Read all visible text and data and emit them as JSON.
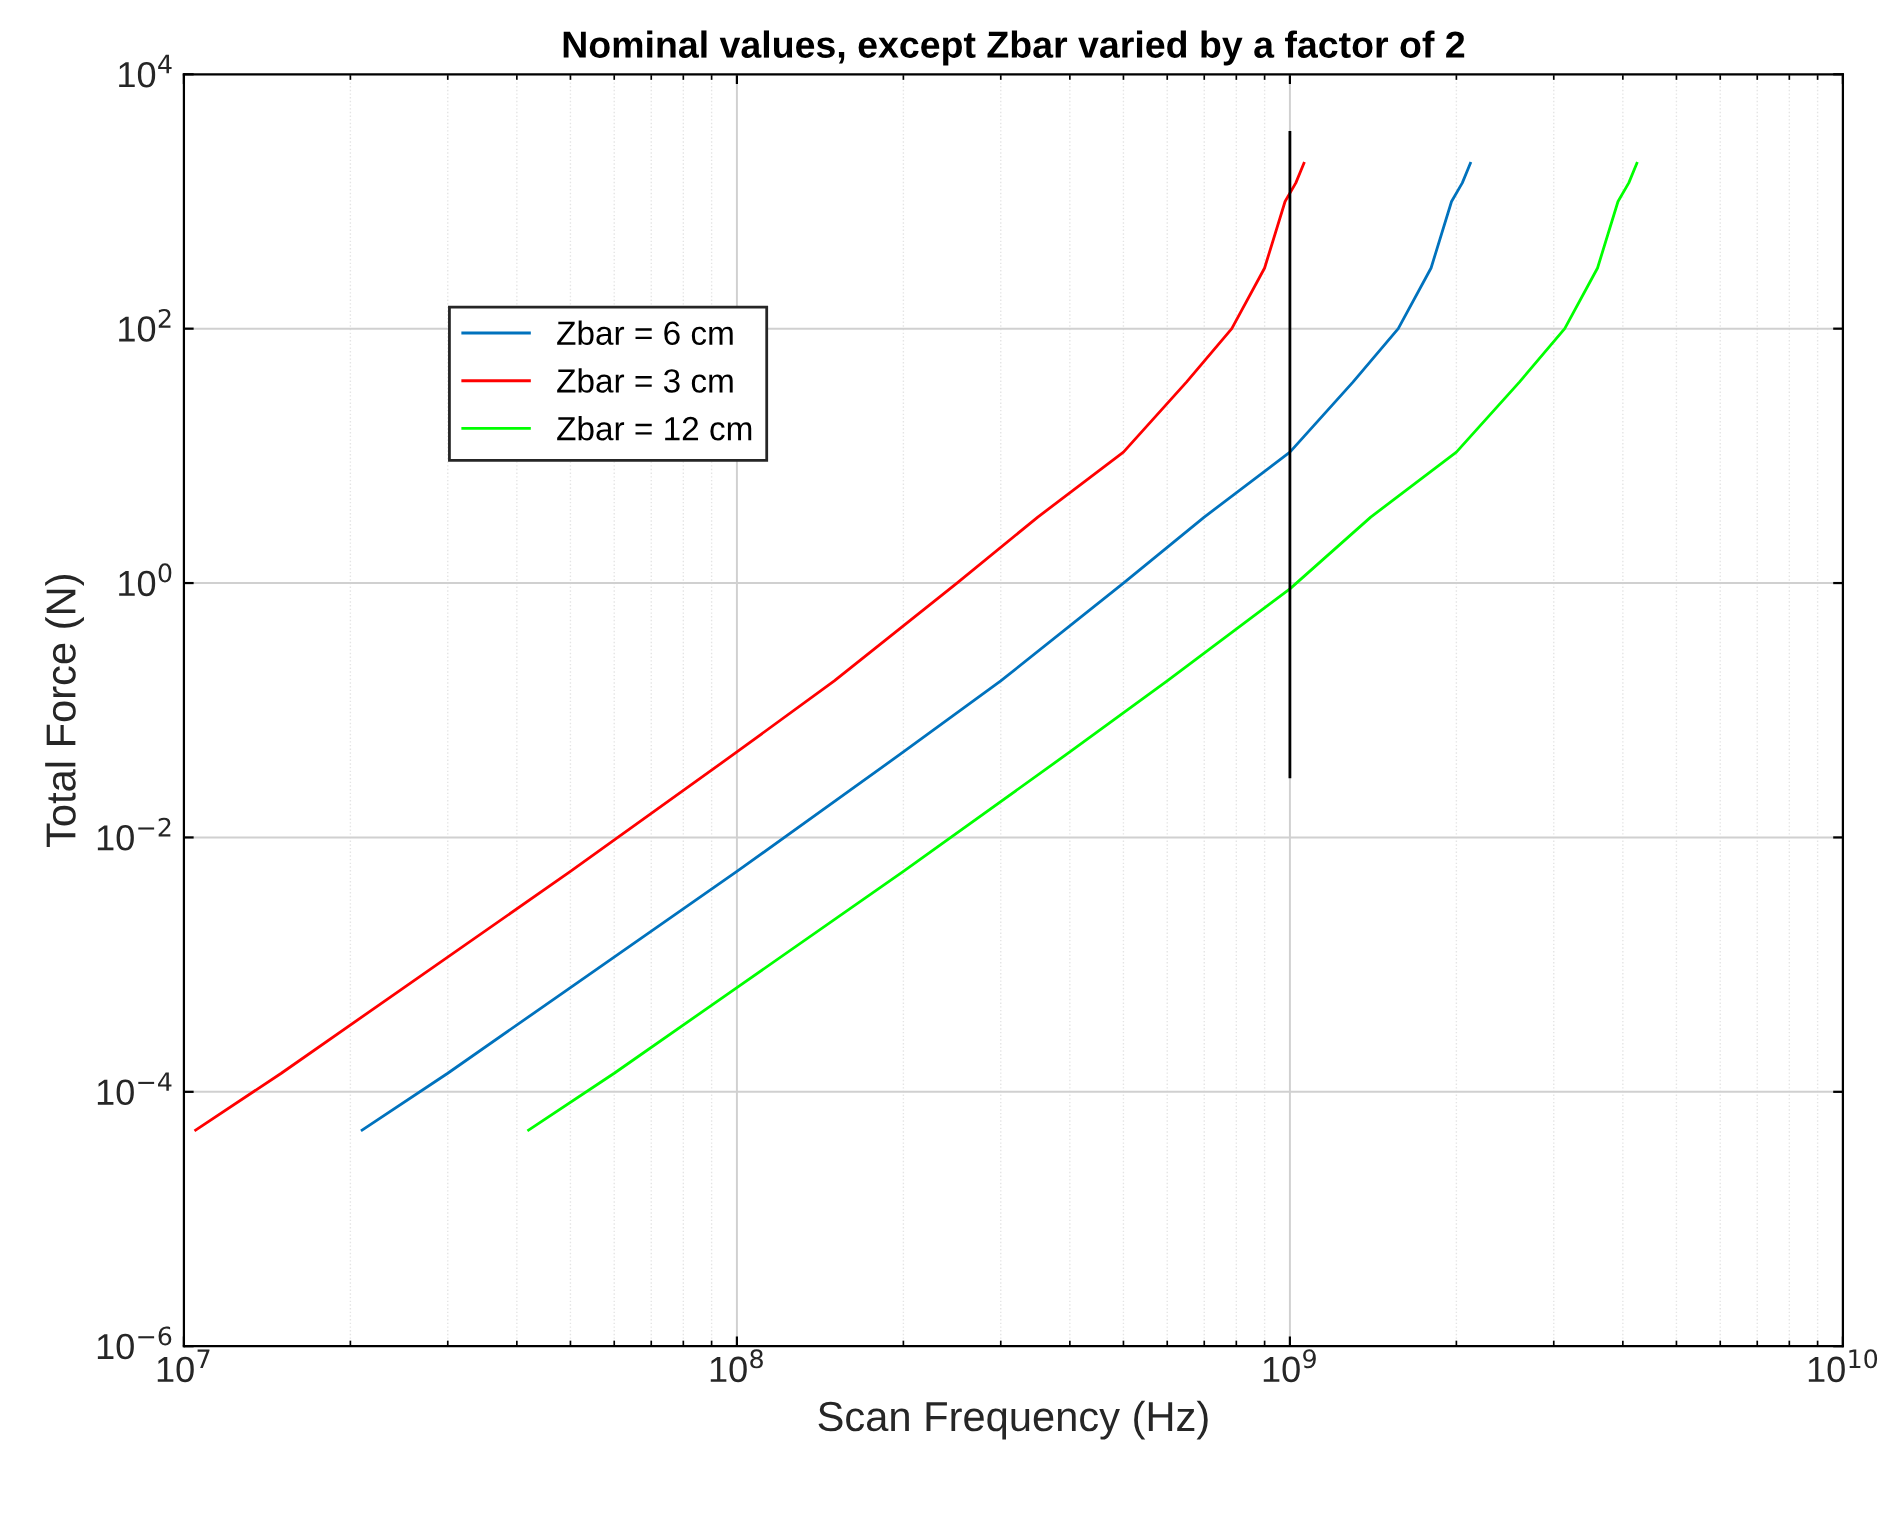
{
  "chart_data": {
    "type": "line",
    "title": "Nominal values, except Zbar varied by a factor of 2",
    "xlabel": "Scan Frequency (Hz)",
    "ylabel": "Total Force (N)",
    "log": "xy",
    "grid": true,
    "legend": "top left",
    "xlim": [
      10000000.0,
      10000000000.0
    ],
    "ylim": [
      1e-06,
      10000.0
    ],
    "xticks": [
      {
        "value": 10000000.0,
        "label": "10$^{7}$"
      },
      {
        "value": 100000000.0,
        "label": "10$^{8}$"
      },
      {
        "value": 1000000000.0,
        "label": "10$^{9}$"
      },
      {
        "value": 10000000000.0,
        "label": "10$^{10}$"
      }
    ],
    "yticks": [
      {
        "value": 1e-06,
        "label": "10$^{−6}$"
      },
      {
        "value": 0.0001,
        "label": "10$^{−4}$"
      },
      {
        "value": 0.01,
        "label": "10$^{−2}$"
      },
      {
        "value": 1,
        "label": "10$^{0}$"
      },
      {
        "value": 100,
        "label": "10$^{2}$"
      },
      {
        "value": 10000,
        "label": "10$^{4}$"
      }
    ],
    "series": [
      {
        "name": "Zbar = 6 cm",
        "color": "#0072bd",
        "x": [
          21000000.0,
          30000000.0,
          50000000.0,
          100000000.0,
          200000000.0,
          300000000.0,
          500000000.0,
          700000000.0,
          1000000000.0,
          1300000000.0,
          1570000000.0,
          1800000000.0,
          1960000000.0,
          2050000000.0,
          2120000000.0
        ],
        "values": [
          5e-05,
          0.00014,
          0.00066,
          0.0054,
          0.047,
          0.17,
          1.0,
          3.3,
          10.7,
          38,
          100,
          300,
          1000,
          1400,
          2000
        ]
      },
      {
        "name": "Zbar = 3 cm",
        "color": "#ff0000",
        "x": [
          10500000.0,
          15000000.0,
          25000000.0,
          50000000.0,
          100000000.0,
          150000000.0,
          250000000.0,
          350000000.0,
          500000000.0,
          650000000.0,
          785000000.0,
          900000000.0,
          980000000.0,
          1025000000.0,
          1060000000.0
        ],
        "values": [
          5e-05,
          0.00014,
          0.00066,
          0.0054,
          0.047,
          0.17,
          1.0,
          3.3,
          10.7,
          38,
          100,
          300,
          1000,
          1400,
          2000
        ]
      },
      {
        "name": "Zbar = 12 cm",
        "color": "#00ff00",
        "x": [
          42000000.0,
          60000000.0,
          100000000.0,
          200000000.0,
          400000000.0,
          600000000.0,
          1000000000.0,
          1400000000.0,
          2000000000.0,
          2600000000.0,
          3140000000.0,
          3600000000.0,
          3920000000.0,
          4100000000.0,
          4240000000.0
        ],
        "values": [
          5e-05,
          0.00014,
          0.00066,
          0.0054,
          0.047,
          0.17,
          0.9,
          3.3,
          10.7,
          38,
          100,
          300,
          1000,
          1400,
          2000
        ]
      },
      {
        "color": "#000000",
        "x": [
          1000000000.0,
          1000000000.0
        ],
        "values": [
          0.03,
          3500
        ]
      }
    ]
  }
}
